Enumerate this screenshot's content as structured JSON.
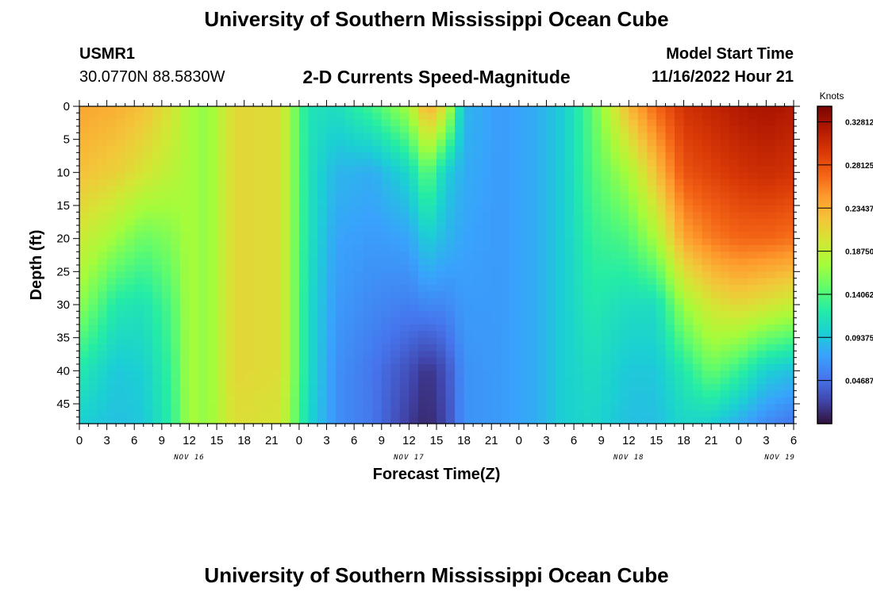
{
  "page_title": "University of Southern Mississippi Ocean Cube",
  "station": {
    "id": "USMR1",
    "coords": "30.0770N  88.5830W"
  },
  "model_start": {
    "label": "Model Start Time",
    "value": "11/16/2022 Hour 21"
  },
  "chart_data": {
    "type": "heatmap",
    "title": "2-D Currents Speed-Magnitude",
    "xlabel": "Forecast Time(Z)",
    "ylabel": "Depth (ft)",
    "x_tick_labels": [
      "0",
      "3",
      "6",
      "9",
      "12",
      "15",
      "18",
      "21",
      "0",
      "3",
      "6",
      "9",
      "12",
      "15",
      "18",
      "21",
      "0",
      "3",
      "6",
      "9",
      "12",
      "15",
      "18",
      "21",
      "0",
      "3",
      "6"
    ],
    "date_labels": [
      {
        "label": "NOV 16",
        "tick_index": 4
      },
      {
        "label": "NOV 17",
        "tick_index": 12
      },
      {
        "label": "NOV 18",
        "tick_index": 20
      },
      {
        "label": "NOV 19",
        "tick_index": 25.5
      }
    ],
    "y_ticks": [
      0,
      5,
      10,
      15,
      20,
      25,
      30,
      35,
      40,
      45
    ],
    "ylim": [
      0,
      48
    ],
    "y_inverted": true,
    "colorbar": {
      "label": "Knots",
      "ticks": [
        "0.32812",
        "0.28125",
        "0.23437",
        "0.18750",
        "0.14062",
        "0.09375",
        "0.04687"
      ],
      "range": [
        0.0,
        0.345
      ],
      "colors": [
        "#30123b",
        "#4145ab",
        "#4675ed",
        "#39a2fc",
        "#1bcfd4",
        "#24eca6",
        "#61fc6c",
        "#a4fc3b",
        "#d1e834",
        "#f3c63a",
        "#fe9b2d",
        "#f36315",
        "#d93806",
        "#b11901",
        "#7a0403"
      ]
    },
    "depth_rows": [
      0,
      10,
      20,
      30,
      40,
      48
    ],
    "column_profiles": [
      {
        "t": 0,
        "speeds": [
          0.24,
          0.225,
          0.195,
          0.165,
          0.12,
          0.1
        ]
      },
      {
        "t": 4,
        "speeds": [
          0.235,
          0.215,
          0.17,
          0.12,
          0.095,
          0.09
        ]
      },
      {
        "t": 7,
        "speeds": [
          0.225,
          0.2,
          0.15,
          0.115,
          0.1,
          0.095
        ]
      },
      {
        "t": 10,
        "speeds": [
          0.2,
          0.185,
          0.16,
          0.14,
          0.13,
          0.125
        ]
      },
      {
        "t": 12,
        "speeds": [
          0.175,
          0.175,
          0.175,
          0.175,
          0.175,
          0.175
        ]
      },
      {
        "t": 14,
        "speeds": [
          0.165,
          0.165,
          0.165,
          0.165,
          0.165,
          0.165
        ]
      },
      {
        "t": 17,
        "speeds": [
          0.21,
          0.21,
          0.21,
          0.21,
          0.21,
          0.205
        ]
      },
      {
        "t": 22,
        "speeds": [
          0.205,
          0.205,
          0.205,
          0.205,
          0.205,
          0.2
        ]
      },
      {
        "t": 24,
        "speeds": [
          0.14,
          0.14,
          0.14,
          0.14,
          0.14,
          0.135
        ]
      },
      {
        "t": 25,
        "speeds": [
          0.115,
          0.115,
          0.115,
          0.11,
          0.11,
          0.105
        ]
      },
      {
        "t": 28,
        "speeds": [
          0.11,
          0.085,
          0.075,
          0.07,
          0.065,
          0.065
        ]
      },
      {
        "t": 32,
        "speeds": [
          0.135,
          0.08,
          0.07,
          0.06,
          0.05,
          0.05
        ]
      },
      {
        "t": 36,
        "speeds": [
          0.175,
          0.105,
          0.075,
          0.055,
          0.03,
          0.02
        ]
      },
      {
        "t": 38,
        "speeds": [
          0.24,
          0.15,
          0.1,
          0.06,
          0.015,
          0.01
        ]
      },
      {
        "t": 40,
        "speeds": [
          0.2,
          0.1,
          0.085,
          0.06,
          0.03,
          0.025
        ]
      },
      {
        "t": 42,
        "speeds": [
          0.085,
          0.08,
          0.075,
          0.07,
          0.065,
          0.065
        ]
      },
      {
        "t": 46,
        "speeds": [
          0.07,
          0.07,
          0.07,
          0.07,
          0.07,
          0.07
        ]
      },
      {
        "t": 50,
        "speeds": [
          0.08,
          0.08,
          0.08,
          0.08,
          0.08,
          0.08
        ]
      },
      {
        "t": 53,
        "speeds": [
          0.1,
          0.1,
          0.1,
          0.1,
          0.1,
          0.1
        ]
      },
      {
        "t": 56,
        "speeds": [
          0.145,
          0.14,
          0.13,
          0.12,
          0.11,
          0.105
        ]
      },
      {
        "t": 60,
        "speeds": [
          0.23,
          0.175,
          0.14,
          0.11,
          0.095,
          0.09
        ]
      },
      {
        "t": 63,
        "speeds": [
          0.27,
          0.225,
          0.175,
          0.11,
          0.095,
          0.09
        ]
      },
      {
        "t": 66,
        "speeds": [
          0.3,
          0.28,
          0.24,
          0.17,
          0.12,
          0.105
        ]
      },
      {
        "t": 69,
        "speeds": [
          0.31,
          0.29,
          0.26,
          0.2,
          0.15,
          0.1
        ]
      },
      {
        "t": 72,
        "speeds": [
          0.32,
          0.3,
          0.27,
          0.21,
          0.13,
          0.08
        ]
      },
      {
        "t": 75,
        "speeds": [
          0.325,
          0.305,
          0.27,
          0.2,
          0.1,
          0.06
        ]
      },
      {
        "t": 78,
        "speeds": [
          0.32,
          0.3,
          0.265,
          0.19,
          0.09,
          0.05
        ]
      }
    ]
  }
}
